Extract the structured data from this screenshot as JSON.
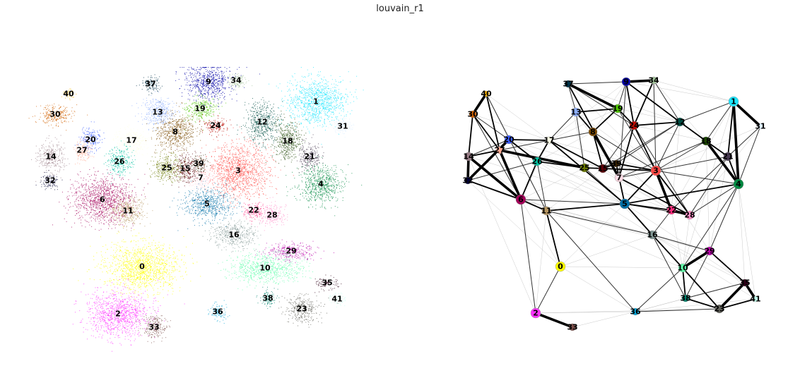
{
  "title": "louvain_r1",
  "umap": {
    "clusters": [
      {
        "id": "0",
        "color": "#ffff00"
      },
      {
        "id": "1",
        "color": "#1ce6ff"
      },
      {
        "id": "2",
        "color": "#ff34ff"
      },
      {
        "id": "3",
        "color": "#ff4a46"
      },
      {
        "id": "4",
        "color": "#008941"
      },
      {
        "id": "5",
        "color": "#006fa6"
      },
      {
        "id": "6",
        "color": "#a30059"
      },
      {
        "id": "7",
        "color": "#ffdbe5"
      },
      {
        "id": "8",
        "color": "#7a4900"
      },
      {
        "id": "9",
        "color": "#0000a6"
      },
      {
        "id": "10",
        "color": "#63ffac"
      },
      {
        "id": "11",
        "color": "#b79762"
      },
      {
        "id": "12",
        "color": "#004d43"
      },
      {
        "id": "13",
        "color": "#8fb0ff"
      },
      {
        "id": "14",
        "color": "#997d87"
      },
      {
        "id": "15",
        "color": "#5a0007"
      },
      {
        "id": "16",
        "color": "#809693"
      },
      {
        "id": "17",
        "color": "#feffe6"
      },
      {
        "id": "18",
        "color": "#1b4400"
      },
      {
        "id": "19",
        "color": "#4fc601"
      },
      {
        "id": "20",
        "color": "#3b5dff"
      },
      {
        "id": "21",
        "color": "#4a3b53"
      },
      {
        "id": "22",
        "color": "#ff2f80"
      },
      {
        "id": "23",
        "color": "#61615a"
      },
      {
        "id": "24",
        "color": "#ba0900"
      },
      {
        "id": "25",
        "color": "#6b7900"
      },
      {
        "id": "26",
        "color": "#00c2a0"
      },
      {
        "id": "27",
        "color": "#ffaa92"
      },
      {
        "id": "28",
        "color": "#ff90c9"
      },
      {
        "id": "29",
        "color": "#b903aa"
      },
      {
        "id": "30",
        "color": "#d16100"
      },
      {
        "id": "31",
        "color": "#ddefff"
      },
      {
        "id": "32",
        "color": "#000035"
      },
      {
        "id": "33",
        "color": "#7b4f4b"
      },
      {
        "id": "34",
        "color": "#a1c299"
      },
      {
        "id": "35",
        "color": "#300018"
      },
      {
        "id": "36",
        "color": "#0aa6d8"
      },
      {
        "id": "37",
        "color": "#013349"
      },
      {
        "id": "38",
        "color": "#00846f"
      },
      {
        "id": "39",
        "color": "#372101"
      },
      {
        "id": "40",
        "color": "#ffb500"
      },
      {
        "id": "41",
        "color": "#c2ffed"
      }
    ]
  },
  "paga": {
    "edges": [
      [
        "2",
        "33",
        3
      ],
      [
        "1",
        "31",
        3
      ],
      [
        "40",
        "30",
        3
      ],
      [
        "14",
        "32",
        3
      ],
      [
        "32",
        "20",
        3
      ],
      [
        "14",
        "6",
        3
      ],
      [
        "6",
        "27",
        3
      ],
      [
        "27",
        "25",
        3
      ],
      [
        "3",
        "22",
        3
      ],
      [
        "22",
        "28",
        3
      ],
      [
        "10",
        "29",
        3
      ],
      [
        "10",
        "23",
        2
      ],
      [
        "35",
        "41",
        3
      ],
      [
        "35",
        "23",
        3
      ],
      [
        "23",
        "41",
        2
      ],
      [
        "37",
        "19",
        3
      ],
      [
        "13",
        "8",
        2
      ],
      [
        "8",
        "7",
        3
      ],
      [
        "9",
        "34",
        3
      ],
      [
        "24",
        "9",
        2
      ],
      [
        "24",
        "3",
        2
      ],
      [
        "1",
        "4",
        3
      ],
      [
        "18",
        "4",
        3
      ],
      [
        "21",
        "4",
        2
      ],
      [
        "3",
        "28",
        2
      ],
      [
        "5",
        "22",
        2
      ],
      [
        "26",
        "25",
        2
      ],
      [
        "15",
        "3",
        2
      ],
      [
        "7",
        "28",
        2
      ],
      [
        "39",
        "3",
        2
      ],
      [
        "37",
        "7",
        2
      ],
      [
        "19",
        "24",
        2
      ],
      [
        "13",
        "19",
        2
      ],
      [
        "20",
        "26",
        2
      ],
      [
        "27",
        "14",
        2
      ],
      [
        "30",
        "27",
        2
      ],
      [
        "30",
        "14",
        2
      ],
      [
        "6",
        "32",
        2
      ],
      [
        "6",
        "11",
        2
      ],
      [
        "11",
        "0",
        2
      ],
      [
        "16",
        "5",
        2
      ],
      [
        "16",
        "10",
        2
      ],
      [
        "10",
        "38",
        2
      ],
      [
        "38",
        "23",
        2
      ],
      [
        "29",
        "35",
        2
      ],
      [
        "12",
        "18",
        2
      ],
      [
        "18",
        "21",
        2
      ],
      [
        "1",
        "21",
        2
      ],
      [
        "12",
        "24",
        2
      ],
      [
        "34",
        "24",
        2
      ],
      [
        "9",
        "12",
        2
      ],
      [
        "17",
        "26",
        2
      ],
      [
        "17",
        "15",
        2
      ],
      [
        "17",
        "5",
        2
      ],
      [
        "25",
        "15",
        2
      ],
      [
        "15",
        "39",
        2
      ],
      [
        "39",
        "7",
        2
      ],
      [
        "7",
        "5",
        2
      ],
      [
        "5",
        "4",
        2
      ],
      [
        "5",
        "3",
        2
      ],
      [
        "11",
        "5",
        2
      ],
      [
        "26",
        "6",
        2
      ],
      [
        "20",
        "17",
        2
      ],
      [
        "40",
        "27",
        2
      ],
      [
        "24",
        "7",
        2
      ],
      [
        "19",
        "8",
        2
      ],
      [
        "8",
        "15",
        2
      ],
      [
        "6",
        "5",
        1
      ],
      [
        "0",
        "2",
        1
      ],
      [
        "6",
        "2",
        1
      ],
      [
        "11",
        "36",
        1
      ],
      [
        "36",
        "10",
        1
      ],
      [
        "36",
        "23",
        1
      ],
      [
        "16",
        "29",
        1
      ],
      [
        "16",
        "23",
        1
      ],
      [
        "4",
        "29",
        1
      ],
      [
        "21",
        "28",
        1
      ],
      [
        "3",
        "4",
        1
      ],
      [
        "3",
        "18",
        1
      ],
      [
        "12",
        "1",
        1
      ],
      [
        "12",
        "3",
        1
      ],
      [
        "9",
        "19",
        1
      ],
      [
        "34",
        "12",
        1
      ],
      [
        "37",
        "9",
        1
      ],
      [
        "37",
        "13",
        1
      ],
      [
        "37",
        "24",
        1
      ],
      [
        "13",
        "17",
        1
      ],
      [
        "13",
        "25",
        1
      ],
      [
        "17",
        "27",
        1
      ],
      [
        "17",
        "8",
        1
      ],
      [
        "30",
        "20",
        1
      ],
      [
        "32",
        "26",
        1
      ],
      [
        "14",
        "20",
        1
      ],
      [
        "11",
        "16",
        1
      ],
      [
        "5",
        "28",
        1
      ],
      [
        "22",
        "16",
        1
      ],
      [
        "15",
        "24",
        1
      ],
      [
        "39",
        "12",
        1
      ],
      [
        "7",
        "21",
        1
      ],
      [
        "21",
        "22",
        1
      ],
      [
        "1",
        "18",
        1
      ],
      [
        "31",
        "21",
        1
      ],
      [
        "31",
        "4",
        1
      ],
      [
        "4",
        "28",
        1
      ],
      [
        "10",
        "29",
        1
      ],
      [
        "29",
        "38",
        1
      ],
      [
        "38",
        "35",
        1
      ],
      [
        "4",
        "10",
        1
      ],
      [
        "16",
        "38",
        1
      ],
      [
        "26",
        "11",
        1
      ],
      [
        "25",
        "5",
        1
      ],
      [
        "8",
        "3",
        1
      ],
      [
        "19",
        "3",
        1
      ],
      [
        "24",
        "28",
        1
      ],
      [
        "9",
        "7",
        1
      ],
      [
        "34",
        "3",
        1
      ],
      [
        "18",
        "7",
        1
      ],
      [
        "12",
        "15",
        1
      ],
      [
        "40",
        "11",
        1
      ],
      [
        "30",
        "6",
        1
      ],
      [
        "0",
        "36",
        0
      ],
      [
        "2",
        "36",
        0
      ],
      [
        "36",
        "35",
        0
      ],
      [
        "36",
        "41",
        0
      ],
      [
        "0",
        "16",
        0
      ],
      [
        "0",
        "5",
        0
      ],
      [
        "0",
        "6",
        0
      ],
      [
        "2",
        "11",
        0
      ],
      [
        "2",
        "14",
        0
      ],
      [
        "0",
        "10",
        0
      ],
      [
        "33",
        "36",
        0
      ],
      [
        "11",
        "10",
        0
      ],
      [
        "5",
        "23",
        0
      ],
      [
        "6",
        "16",
        0
      ],
      [
        "6",
        "29",
        0
      ],
      [
        "11",
        "29",
        0
      ],
      [
        "5",
        "35",
        0
      ],
      [
        "16",
        "41",
        0
      ],
      [
        "4",
        "41",
        0
      ],
      [
        "4",
        "35",
        0
      ],
      [
        "1",
        "10",
        0
      ],
      [
        "1",
        "22",
        0
      ],
      [
        "31",
        "28",
        0
      ],
      [
        "31",
        "3",
        0
      ],
      [
        "34",
        "1",
        0
      ],
      [
        "9",
        "1",
        0
      ],
      [
        "34",
        "18",
        0
      ],
      [
        "37",
        "12",
        0
      ],
      [
        "37",
        "3",
        0
      ],
      [
        "17",
        "3",
        0
      ],
      [
        "17",
        "22",
        0
      ],
      [
        "13",
        "3",
        0
      ],
      [
        "20",
        "5",
        0
      ],
      [
        "20",
        "11",
        0
      ],
      [
        "14",
        "11",
        0
      ],
      [
        "32",
        "11",
        0
      ],
      [
        "32",
        "0",
        0
      ],
      [
        "14",
        "5",
        0
      ],
      [
        "27",
        "5",
        0
      ],
      [
        "40",
        "20",
        0
      ],
      [
        "40",
        "17",
        0
      ],
      [
        "30",
        "17",
        0
      ],
      [
        "26",
        "16",
        0
      ],
      [
        "25",
        "16",
        0
      ],
      [
        "26",
        "22",
        0
      ],
      [
        "15",
        "22",
        0
      ],
      [
        "8",
        "22",
        0
      ],
      [
        "39",
        "28",
        0
      ],
      [
        "12",
        "22",
        0
      ],
      [
        "21",
        "3",
        0
      ],
      [
        "21",
        "29",
        0
      ],
      [
        "3",
        "29",
        0
      ],
      [
        "28",
        "10",
        0
      ],
      [
        "22",
        "10",
        0
      ],
      [
        "16",
        "35",
        0
      ],
      [
        "38",
        "36",
        0
      ],
      [
        "23",
        "2",
        0
      ],
      [
        "29",
        "41",
        0
      ],
      [
        "18",
        "29",
        0
      ],
      [
        "19",
        "17",
        0
      ],
      [
        "9",
        "17",
        0
      ],
      [
        "9",
        "8",
        0
      ],
      [
        "24",
        "18",
        0
      ],
      [
        "19",
        "12",
        0
      ],
      [
        "13",
        "7",
        0
      ],
      [
        "37",
        "25",
        0
      ],
      [
        "8",
        "26",
        0
      ],
      [
        "20",
        "15",
        0
      ],
      [
        "27",
        "26",
        0
      ],
      [
        "11",
        "15",
        0
      ],
      [
        "6",
        "25",
        0
      ],
      [
        "6",
        "17",
        0
      ]
    ]
  }
}
